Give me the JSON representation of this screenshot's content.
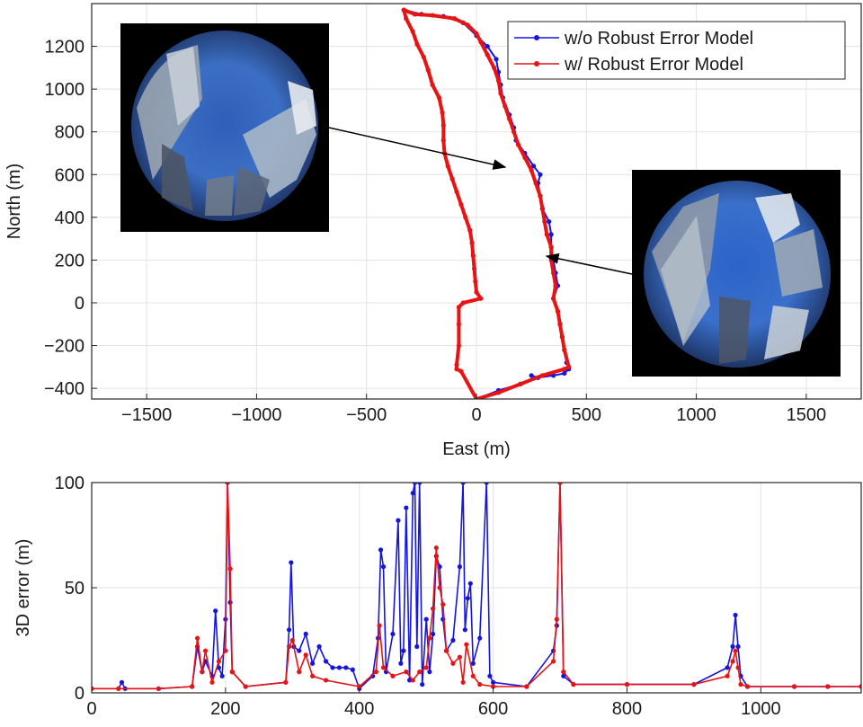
{
  "chart_data": [
    {
      "type": "line",
      "xlabel": "East (m)",
      "ylabel": "North (m)",
      "xlim": [
        -1750,
        1750
      ],
      "ylim": [
        -450,
        1400
      ],
      "xticks": [
        -1500,
        -1000,
        -500,
        0,
        500,
        1000,
        1500
      ],
      "yticks": [
        -400,
        -200,
        0,
        200,
        400,
        600,
        800,
        1000,
        1200
      ],
      "grid": true,
      "legend_position": "top-right",
      "colors": {
        "blue": "#1515e0",
        "red": "#e81313"
      },
      "series": [
        {
          "name": "w/o Robust Error Model",
          "color": "#1515e0",
          "points": [
            [
              -330,
              1370
            ],
            [
              -250,
              1350
            ],
            [
              -150,
              1340
            ],
            [
              -60,
              1310
            ],
            [
              0,
              1250
            ],
            [
              50,
              1200
            ],
            [
              90,
              1140
            ],
            [
              100,
              1080
            ],
            [
              110,
              1020
            ],
            [
              120,
              960
            ],
            [
              150,
              880
            ],
            [
              170,
              820
            ],
            [
              180,
              760
            ],
            [
              220,
              700
            ],
            [
              260,
              640
            ],
            [
              290,
              600
            ],
            [
              280,
              560
            ],
            [
              290,
              500
            ],
            [
              300,
              440
            ],
            [
              330,
              380
            ],
            [
              340,
              320
            ],
            [
              340,
              260
            ],
            [
              350,
              200
            ],
            [
              360,
              140
            ],
            [
              370,
              80
            ],
            [
              350,
              20
            ],
            [
              370,
              -40
            ],
            [
              380,
              -100
            ],
            [
              390,
              -160
            ],
            [
              400,
              -220
            ],
            [
              410,
              -280
            ],
            [
              420,
              -310
            ],
            [
              400,
              -330
            ],
            [
              350,
              -340
            ],
            [
              280,
              -350
            ],
            [
              250,
              -340
            ],
            [
              280,
              -350
            ],
            [
              200,
              -380
            ],
            [
              100,
              -410
            ],
            [
              0,
              -450
            ]
          ]
        },
        {
          "name": "w/ Robust Error Model",
          "color": "#e81313",
          "points": [
            [
              -330,
              1370
            ],
            [
              -320,
              1330
            ],
            [
              -290,
              1270
            ],
            [
              -270,
              1210
            ],
            [
              -240,
              1150
            ],
            [
              -220,
              1090
            ],
            [
              -200,
              1020
            ],
            [
              -170,
              960
            ],
            [
              -155,
              890
            ],
            [
              -150,
              830
            ],
            [
              -150,
              760
            ],
            [
              -145,
              700
            ],
            [
              -130,
              640
            ],
            [
              -110,
              580
            ],
            [
              -90,
              520
            ],
            [
              -70,
              460
            ],
            [
              -50,
              400
            ],
            [
              -30,
              340
            ],
            [
              -20,
              280
            ],
            [
              -15,
              220
            ],
            [
              -10,
              160
            ],
            [
              -5,
              100
            ],
            [
              0,
              50
            ],
            [
              20,
              20
            ],
            [
              -60,
              0
            ],
            [
              -80,
              -20
            ],
            [
              -80,
              -100
            ],
            [
              -80,
              -200
            ],
            [
              -90,
              -290
            ],
            [
              -90,
              -310
            ],
            [
              -70,
              -320
            ],
            [
              0,
              -450
            ],
            [
              100,
              -420
            ],
            [
              200,
              -380
            ],
            [
              300,
              -340
            ],
            [
              400,
              -310
            ],
            [
              420,
              -300
            ],
            [
              400,
              -220
            ],
            [
              390,
              -160
            ],
            [
              380,
              -100
            ],
            [
              370,
              -40
            ],
            [
              350,
              20
            ],
            [
              360,
              80
            ],
            [
              350,
              140
            ],
            [
              340,
              200
            ],
            [
              340,
              260
            ],
            [
              320,
              320
            ],
            [
              310,
              380
            ],
            [
              300,
              440
            ],
            [
              290,
              500
            ],
            [
              270,
              560
            ],
            [
              250,
              620
            ],
            [
              220,
              680
            ],
            [
              190,
              740
            ],
            [
              170,
              800
            ],
            [
              150,
              860
            ],
            [
              130,
              920
            ],
            [
              110,
              980
            ],
            [
              100,
              1040
            ],
            [
              80,
              1100
            ],
            [
              50,
              1160
            ],
            [
              20,
              1220
            ],
            [
              0,
              1260
            ],
            [
              -40,
              1300
            ],
            [
              -100,
              1330
            ],
            [
              -200,
              1345
            ],
            [
              -280,
              1350
            ],
            [
              -330,
              1370
            ]
          ]
        }
      ],
      "annotations": [
        {
          "label": "fisheye-image-left",
          "arrow_to": [
            255,
            640
          ]
        },
        {
          "label": "fisheye-image-right",
          "arrow_to": [
            345,
            210
          ]
        }
      ]
    },
    {
      "type": "line",
      "xlabel": "",
      "ylabel": "3D error (m)",
      "xlim": [
        0,
        1150
      ],
      "ylim": [
        0,
        100
      ],
      "xticks": [
        0,
        200,
        400,
        600,
        800,
        1000
      ],
      "yticks": [
        0,
        50,
        100
      ],
      "grid": true,
      "series": [
        {
          "name": "w/o Robust Error Model",
          "color": "#1515e0",
          "points": [
            [
              0,
              2
            ],
            [
              40,
              2
            ],
            [
              45,
              5
            ],
            [
              50,
              2
            ],
            [
              100,
              2
            ],
            [
              150,
              3
            ],
            [
              158,
              22
            ],
            [
              165,
              10
            ],
            [
              170,
              15
            ],
            [
              180,
              8
            ],
            [
              185,
              39
            ],
            [
              190,
              12
            ],
            [
              195,
              8
            ],
            [
              200,
              35
            ],
            [
              203,
              100
            ],
            [
              207,
              43
            ],
            [
              210,
              10
            ],
            [
              230,
              3
            ],
            [
              290,
              5
            ],
            [
              295,
              30
            ],
            [
              298,
              62
            ],
            [
              302,
              22
            ],
            [
              310,
              20
            ],
            [
              320,
              28
            ],
            [
              330,
              14
            ],
            [
              340,
              22
            ],
            [
              350,
              15
            ],
            [
              360,
              12
            ],
            [
              370,
              12
            ],
            [
              380,
              12
            ],
            [
              390,
              11
            ],
            [
              400,
              2
            ],
            [
              420,
              8
            ],
            [
              428,
              26
            ],
            [
              432,
              68
            ],
            [
              436,
              60
            ],
            [
              440,
              10
            ],
            [
              450,
              28
            ],
            [
              458,
              82
            ],
            [
              462,
              14
            ],
            [
              466,
              20
            ],
            [
              470,
              88
            ],
            [
              475,
              6
            ],
            [
              480,
              95
            ],
            [
              483,
              100
            ],
            [
              486,
              22
            ],
            [
              490,
              100
            ],
            [
              494,
              4
            ],
            [
              500,
              35
            ],
            [
              505,
              10
            ],
            [
              510,
              28
            ],
            [
              515,
              65
            ],
            [
              520,
              60
            ],
            [
              525,
              35
            ],
            [
              530,
              20
            ],
            [
              540,
              25
            ],
            [
              550,
              60
            ],
            [
              555,
              100
            ],
            [
              558,
              30
            ],
            [
              562,
              45
            ],
            [
              566,
              52
            ],
            [
              570,
              14
            ],
            [
              580,
              26
            ],
            [
              590,
              100
            ],
            [
              595,
              8
            ],
            [
              600,
              5
            ],
            [
              650,
              3
            ],
            [
              690,
              20
            ],
            [
              695,
              32
            ],
            [
              700,
              100
            ],
            [
              705,
              8
            ],
            [
              720,
              4
            ],
            [
              800,
              4
            ],
            [
              900,
              4
            ],
            [
              950,
              12
            ],
            [
              958,
              22
            ],
            [
              962,
              37
            ],
            [
              966,
              22
            ],
            [
              970,
              8
            ],
            [
              980,
              3
            ],
            [
              1050,
              3
            ],
            [
              1100,
              3
            ],
            [
              1150,
              3
            ]
          ]
        },
        {
          "name": "w/ Robust Error Model",
          "color": "#e81313",
          "points": [
            [
              0,
              2
            ],
            [
              40,
              2
            ],
            [
              100,
              2
            ],
            [
              150,
              3
            ],
            [
              158,
              26
            ],
            [
              165,
              10
            ],
            [
              170,
              20
            ],
            [
              180,
              5
            ],
            [
              190,
              15
            ],
            [
              200,
              20
            ],
            [
              203,
              100
            ],
            [
              207,
              59
            ],
            [
              210,
              10
            ],
            [
              230,
              3
            ],
            [
              290,
              5
            ],
            [
              295,
              22
            ],
            [
              300,
              25
            ],
            [
              310,
              10
            ],
            [
              320,
              18
            ],
            [
              330,
              8
            ],
            [
              350,
              6
            ],
            [
              400,
              3
            ],
            [
              425,
              10
            ],
            [
              430,
              32
            ],
            [
              436,
              12
            ],
            [
              450,
              8
            ],
            [
              470,
              10
            ],
            [
              480,
              6
            ],
            [
              490,
              10
            ],
            [
              500,
              12
            ],
            [
              505,
              26
            ],
            [
              510,
              40
            ],
            [
              515,
              69
            ],
            [
              520,
              50
            ],
            [
              525,
              42
            ],
            [
              530,
              20
            ],
            [
              540,
              14
            ],
            [
              550,
              17
            ],
            [
              555,
              5
            ],
            [
              560,
              23
            ],
            [
              570,
              8
            ],
            [
              580,
              4
            ],
            [
              600,
              3
            ],
            [
              650,
              3
            ],
            [
              690,
              15
            ],
            [
              695,
              35
            ],
            [
              700,
              100
            ],
            [
              705,
              10
            ],
            [
              720,
              4
            ],
            [
              800,
              4
            ],
            [
              900,
              4
            ],
            [
              950,
              8
            ],
            [
              958,
              15
            ],
            [
              962,
              20
            ],
            [
              966,
              12
            ],
            [
              970,
              4
            ],
            [
              980,
              3
            ],
            [
              1050,
              3
            ],
            [
              1100,
              3
            ],
            [
              1150,
              3
            ]
          ]
        }
      ]
    }
  ],
  "legend": [
    {
      "label": "w/o Robust Error Model",
      "color": "#1515e0"
    },
    {
      "label": "w/ Robust Error Model",
      "color": "#e81313"
    }
  ]
}
